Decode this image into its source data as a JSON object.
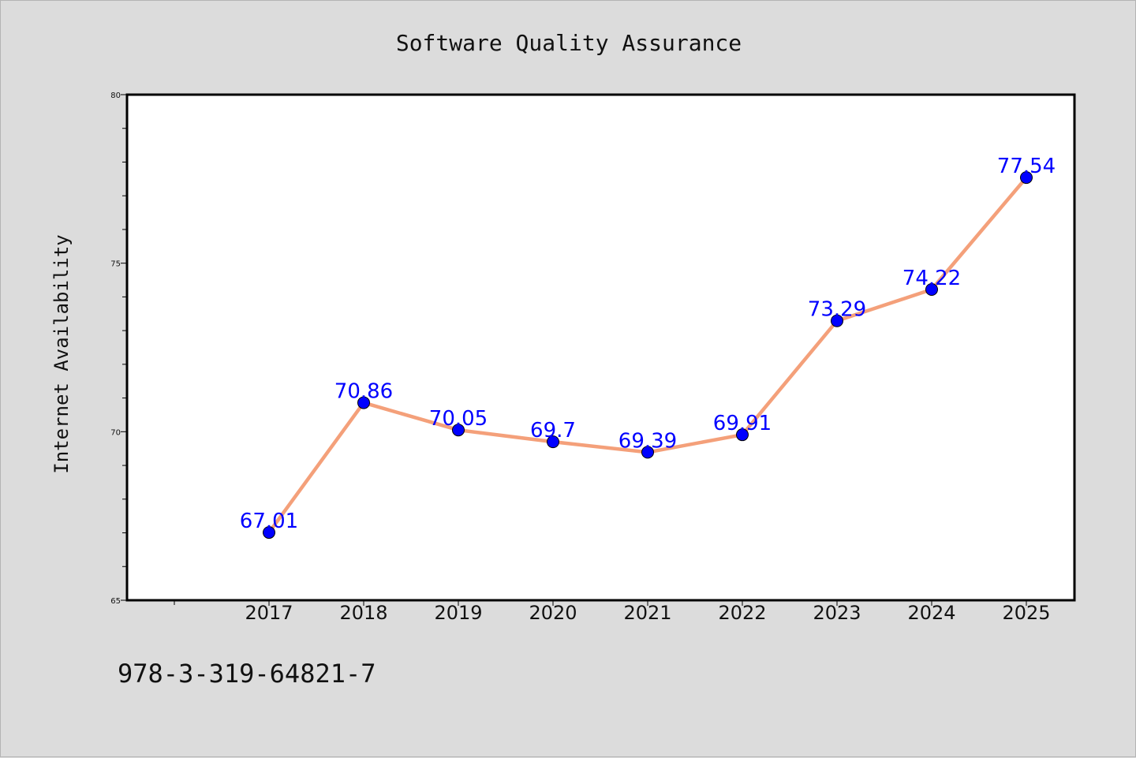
{
  "chart_data": {
    "type": "line",
    "title": "Software Quality Assurance",
    "xlabel": "",
    "ylabel": "Internet Availability",
    "categories": [
      "2017",
      "2018",
      "2019",
      "2020",
      "2021",
      "2022",
      "2023",
      "2024",
      "2025"
    ],
    "series": [
      {
        "values": [
          67.01,
          70.86,
          70.05,
          69.7,
          69.39,
          69.91,
          73.29,
          74.22,
          77.54
        ],
        "labels": [
          "67.01",
          "70.86",
          "70.05",
          "69.7",
          "69.39",
          "69.91",
          "73.29",
          "74.22",
          "77.54"
        ],
        "line_color": "#f4a07a",
        "marker_color": "#0000ff"
      }
    ],
    "ylim": [
      65,
      80
    ],
    "yticks": [
      "65",
      "70",
      "75",
      "80"
    ],
    "grid": false,
    "legend": "none"
  },
  "footnote": "978-3-319-64821-7"
}
